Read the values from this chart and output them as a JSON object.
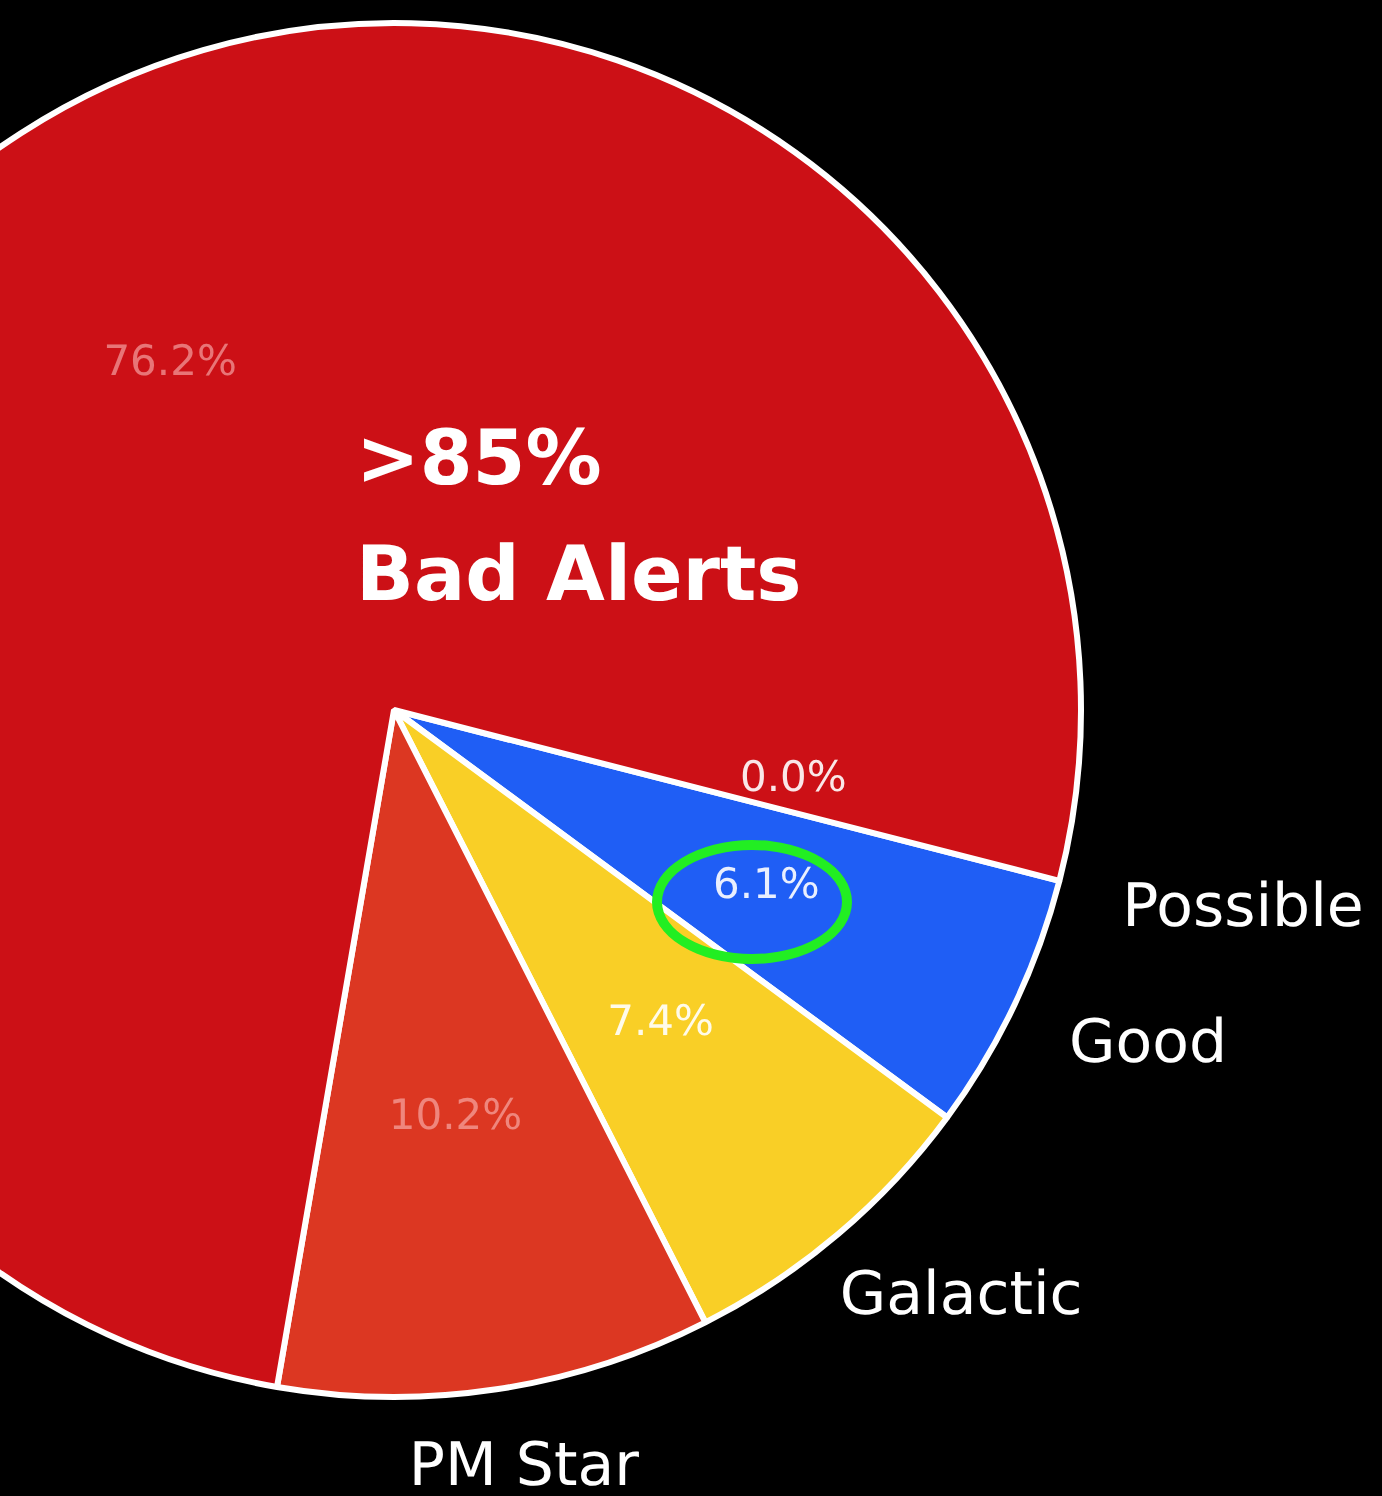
{
  "chart_data": {
    "type": "pie",
    "categories": [
      "Possible",
      "Good",
      "Galactic",
      "PM Star",
      null
    ],
    "values": [
      0.0,
      6.1,
      7.4,
      10.2,
      76.2
    ],
    "value_labels": [
      "0.0%",
      "6.1%",
      "7.4%",
      "10.2%",
      "76.2%"
    ],
    "colors": [
      "#8a8a8a",
      "#1f5ef5",
      "#f9cf26",
      "#dc3722",
      "#cc1016"
    ],
    "annotations": [
      ">85%\nBad Alerts"
    ],
    "legend": false
  }
}
